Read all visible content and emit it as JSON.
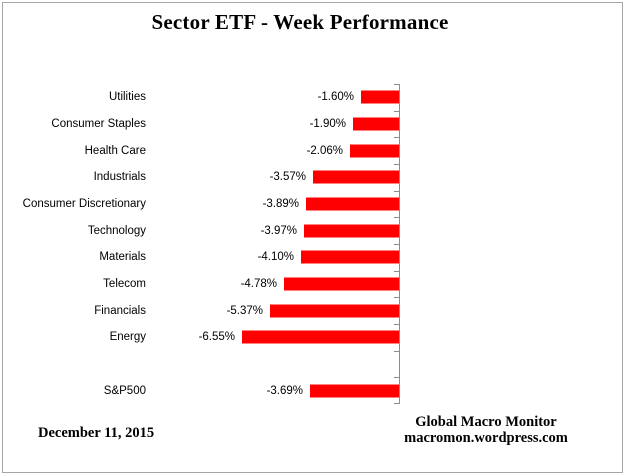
{
  "title": "Sector ETF - Week Performance",
  "footer": {
    "date": "December 11, 2015",
    "source_line1": "Global Macro Monitor",
    "source_line2": "macromon.wordpress.com"
  },
  "colors": {
    "bar": "#ff0000",
    "axis": "#8c8c8c",
    "frame_border": "#a6a6a6",
    "text": "#000000"
  },
  "chart_data": {
    "type": "bar",
    "orientation": "horizontal",
    "title": "Sector ETF - Week Performance",
    "xlabel": "",
    "ylabel": "",
    "xlim": [
      -7,
      0
    ],
    "grid": false,
    "legend": false,
    "axis_side": "right",
    "value_suffix": "%",
    "categories": [
      "Utilities",
      "Consumer Staples",
      "Health Care",
      "Industrials",
      "Consumer Discretionary",
      "Technology",
      "Materials",
      "Telecom",
      "Financials",
      "Energy",
      "S&P500"
    ],
    "values": [
      -1.6,
      -1.9,
      -2.06,
      -3.57,
      -3.89,
      -3.97,
      -4.1,
      -4.78,
      -5.37,
      -6.55,
      -3.69
    ],
    "display_labels": [
      "-1.60%",
      "-1.90%",
      "-2.06%",
      "-3.57%",
      "-3.89%",
      "-3.97%",
      "-4.10%",
      "-4.78%",
      "-5.37%",
      "-6.55%",
      "-3.69%"
    ],
    "slots": [
      0,
      1,
      2,
      3,
      4,
      5,
      6,
      7,
      8,
      9,
      11
    ],
    "num_slots": 12
  }
}
